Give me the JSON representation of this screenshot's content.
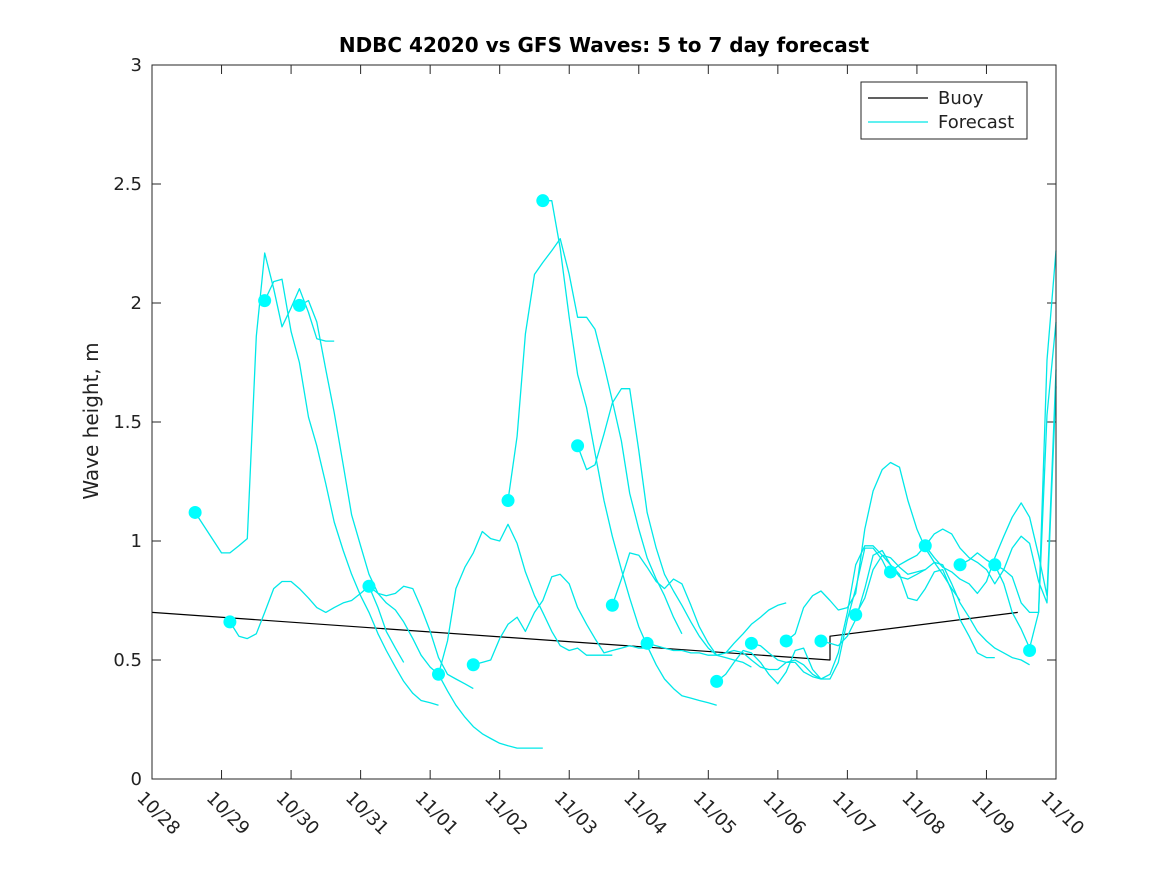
{
  "chart_data": {
    "type": "line",
    "title": "NDBC 42020 vs GFS Waves: 5 to 7 day forecast",
    "xlabel": "",
    "ylabel": "Wave height, m",
    "x_range_days": [
      0,
      13
    ],
    "ylim": [
      0,
      3
    ],
    "yticks": [
      0,
      0.5,
      1,
      1.5,
      2,
      2.5,
      3
    ],
    "ytick_labels": [
      "0",
      "0.5",
      "1",
      "1.5",
      "2",
      "2.5",
      "3"
    ],
    "xtick_labels": [
      "10/28",
      "10/29",
      "10/30",
      "10/31",
      "11/01",
      "11/02",
      "11/03",
      "11/04",
      "11/05",
      "11/06",
      "11/07",
      "11/08",
      "11/09",
      "11/10"
    ],
    "legend": {
      "location": "top-right",
      "entries": [
        {
          "label": "Buoy",
          "color": "#000000"
        },
        {
          "label": "Forecast",
          "color": "#00ffff"
        }
      ]
    },
    "colors": {
      "buoy": "#000000",
      "forecast": "#00e8e8",
      "marker": "#00ffff"
    },
    "series": [
      {
        "name": "Buoy",
        "x": [
          0,
          9.75,
          9.75,
          12.45
        ],
        "y": [
          0.7,
          0.5,
          0.6,
          0.7
        ]
      },
      {
        "name": "Forecast",
        "x": [
          0.62,
          1.0,
          1.12,
          1.25,
          1.37,
          1.5,
          1.62,
          1.75,
          1.87,
          2.0,
          2.12,
          2.25,
          2.37,
          2.5,
          2.62
        ],
        "y": [
          1.12,
          0.95,
          0.95,
          0.98,
          1.01,
          1.86,
          2.21,
          2.06,
          1.9,
          1.98,
          2.06,
          1.96,
          1.85,
          1.84,
          1.84
        ]
      },
      {
        "name": "Forecast",
        "x": [
          1.12,
          1.25,
          1.37,
          1.5,
          1.62,
          1.75,
          1.87,
          2.0,
          2.12,
          2.25,
          2.37,
          2.5,
          2.62,
          2.75,
          2.87,
          3.0,
          3.12,
          3.25,
          3.37,
          3.5,
          3.62
        ],
        "y": [
          0.66,
          0.6,
          0.59,
          0.61,
          0.7,
          0.8,
          0.83,
          0.83,
          0.8,
          0.76,
          0.72,
          0.7,
          0.72,
          0.74,
          0.75,
          0.78,
          0.81,
          0.72,
          0.62,
          0.55,
          0.49
        ]
      },
      {
        "name": "Forecast",
        "x": [
          1.62,
          1.75,
          1.87,
          2.0,
          2.12,
          2.25,
          2.37,
          2.5,
          2.62,
          2.75,
          2.87,
          3.0,
          3.12,
          3.25,
          3.37,
          3.5,
          3.62,
          3.75,
          3.87,
          4.0,
          4.12
        ],
        "y": [
          2.01,
          2.09,
          2.1,
          1.88,
          1.75,
          1.52,
          1.4,
          1.24,
          1.08,
          0.96,
          0.86,
          0.77,
          0.7,
          0.61,
          0.54,
          0.47,
          0.41,
          0.36,
          0.33,
          0.32,
          0.31
        ]
      },
      {
        "name": "Forecast",
        "x": [
          2.12,
          2.25,
          2.37,
          2.5,
          2.62,
          2.75,
          2.87,
          3.0,
          3.12,
          3.25,
          3.37,
          3.5,
          3.62,
          3.75,
          3.87,
          4.0,
          4.12,
          4.25,
          4.37,
          4.5,
          4.62
        ],
        "y": [
          1.99,
          2.01,
          1.92,
          1.72,
          1.54,
          1.32,
          1.11,
          0.98,
          0.86,
          0.78,
          0.77,
          0.78,
          0.81,
          0.8,
          0.72,
          0.62,
          0.51,
          0.44,
          0.42,
          0.4,
          0.38
        ]
      },
      {
        "name": "Forecast",
        "x": [
          3.12,
          3.25,
          3.37,
          3.5,
          3.62,
          3.75,
          3.87,
          4.0,
          4.12,
          4.25,
          4.37,
          4.5,
          4.62,
          4.75,
          4.87,
          5.0,
          5.12,
          5.25,
          5.37,
          5.5,
          5.62
        ],
        "y": [
          0.81,
          0.78,
          0.74,
          0.71,
          0.66,
          0.59,
          0.52,
          0.47,
          0.44,
          0.37,
          0.31,
          0.26,
          0.22,
          0.19,
          0.17,
          0.15,
          0.14,
          0.13,
          0.13,
          0.13,
          0.13
        ]
      },
      {
        "name": "Forecast",
        "x": [
          4.12,
          4.25,
          4.37,
          4.5,
          4.62,
          4.75,
          4.87,
          5.0,
          5.12,
          5.25,
          5.37,
          5.5,
          5.62,
          5.75,
          5.87,
          6.0,
          6.12,
          6.25,
          6.37,
          6.5,
          6.62
        ],
        "y": [
          0.44,
          0.58,
          0.8,
          0.89,
          0.95,
          1.04,
          1.01,
          1.0,
          1.07,
          0.99,
          0.87,
          0.77,
          0.7,
          0.62,
          0.56,
          0.54,
          0.55,
          0.52,
          0.52,
          0.52,
          0.52
        ]
      },
      {
        "name": "Forecast",
        "x": [
          4.62,
          4.75,
          4.87,
          5.0,
          5.12,
          5.25,
          5.37,
          5.5,
          5.62,
          5.75,
          5.87,
          6.0,
          6.12,
          6.25,
          6.37,
          6.5,
          6.62,
          6.75,
          6.87,
          7.0,
          7.12
        ],
        "y": [
          0.48,
          0.49,
          0.5,
          0.59,
          0.65,
          0.68,
          0.62,
          0.7,
          0.75,
          0.85,
          0.86,
          0.82,
          0.72,
          0.65,
          0.59,
          0.53,
          0.54,
          0.55,
          0.56,
          0.55,
          0.55
        ]
      },
      {
        "name": "Forecast",
        "x": [
          5.12,
          5.25,
          5.37,
          5.5,
          5.62,
          5.75,
          5.87,
          6.0,
          6.12,
          6.25,
          6.37,
          6.5,
          6.62,
          6.75,
          6.87,
          7.0,
          7.12,
          7.25,
          7.37,
          7.5,
          7.62
        ],
        "y": [
          1.17,
          1.44,
          1.87,
          2.12,
          2.17,
          2.22,
          2.27,
          2.12,
          1.94,
          1.94,
          1.89,
          1.74,
          1.59,
          1.42,
          1.2,
          1.05,
          0.93,
          0.84,
          0.77,
          0.68,
          0.61
        ]
      },
      {
        "name": "Forecast",
        "x": [
          5.62,
          5.75,
          5.87,
          6.0,
          6.12,
          6.25,
          6.37,
          6.5,
          6.62,
          6.75,
          6.87,
          7.0,
          7.12,
          7.25,
          7.37,
          7.5,
          7.62,
          7.75,
          7.87,
          8.0,
          8.12
        ],
        "y": [
          2.43,
          2.43,
          2.23,
          1.94,
          1.7,
          1.56,
          1.37,
          1.17,
          1.02,
          0.88,
          0.76,
          0.64,
          0.56,
          0.48,
          0.42,
          0.38,
          0.35,
          0.34,
          0.33,
          0.32,
          0.31
        ]
      },
      {
        "name": "Forecast",
        "x": [
          6.12,
          6.25,
          6.37,
          6.5,
          6.62,
          6.75,
          6.87,
          7.0,
          7.12,
          7.25,
          7.37,
          7.5,
          7.62,
          7.75,
          7.87,
          8.0,
          8.12,
          8.25,
          8.37,
          8.5,
          8.62
        ],
        "y": [
          1.4,
          1.3,
          1.32,
          1.45,
          1.58,
          1.64,
          1.64,
          1.38,
          1.12,
          0.97,
          0.86,
          0.79,
          0.73,
          0.66,
          0.6,
          0.55,
          0.52,
          0.51,
          0.5,
          0.49,
          0.47
        ]
      },
      {
        "name": "Forecast",
        "x": [
          6.62,
          6.75,
          6.87,
          7.0,
          7.12,
          7.25,
          7.37,
          7.5,
          7.62,
          7.75,
          7.87,
          8.0,
          8.12,
          8.25,
          8.37,
          8.5,
          8.62,
          8.75,
          8.87,
          9.0,
          9.12
        ],
        "y": [
          0.73,
          0.84,
          0.95,
          0.94,
          0.89,
          0.83,
          0.8,
          0.84,
          0.82,
          0.73,
          0.64,
          0.57,
          0.52,
          0.53,
          0.57,
          0.61,
          0.65,
          0.68,
          0.71,
          0.73,
          0.74
        ]
      },
      {
        "name": "Forecast",
        "x": [
          7.12,
          7.25,
          7.37,
          7.5,
          7.62,
          7.75,
          7.87,
          8.0,
          8.12,
          8.25,
          8.37,
          8.5,
          8.62,
          8.75,
          8.87,
          9.0,
          9.12,
          9.25,
          9.37,
          9.5,
          9.62
        ],
        "y": [
          0.57,
          0.56,
          0.55,
          0.54,
          0.54,
          0.53,
          0.53,
          0.52,
          0.52,
          0.53,
          0.54,
          0.53,
          0.5,
          0.47,
          0.46,
          0.46,
          0.49,
          0.5,
          0.48,
          0.44,
          0.42
        ]
      },
      {
        "name": "Forecast",
        "x": [
          8.12,
          8.25,
          8.37,
          8.5,
          8.62,
          8.75,
          8.87,
          9.0,
          9.12,
          9.25,
          9.37,
          9.5,
          9.62,
          9.75,
          9.87,
          10.0,
          10.12,
          10.25,
          10.37,
          10.5,
          10.62
        ],
        "y": [
          0.41,
          0.44,
          0.49,
          0.54,
          0.53,
          0.49,
          0.44,
          0.4,
          0.45,
          0.54,
          0.55,
          0.46,
          0.42,
          0.42,
          0.49,
          0.67,
          0.8,
          0.97,
          0.97,
          0.92,
          0.85
        ]
      },
      {
        "name": "Forecast",
        "x": [
          8.62,
          8.75,
          8.87,
          9.0,
          9.12,
          9.25,
          9.37,
          9.5,
          9.62,
          9.75,
          9.87,
          10.0,
          10.12,
          10.25,
          10.37,
          10.5,
          10.62,
          10.75,
          10.87,
          11.0,
          11.12
        ],
        "y": [
          0.57,
          0.56,
          0.53,
          0.5,
          0.49,
          0.49,
          0.45,
          0.43,
          0.42,
          0.44,
          0.53,
          0.7,
          0.9,
          0.98,
          0.98,
          0.94,
          0.9,
          0.85,
          0.84,
          0.86,
          0.88
        ]
      },
      {
        "name": "Forecast",
        "x": [
          9.12,
          9.25,
          9.37,
          9.5,
          9.62,
          9.75,
          9.87,
          10.0,
          10.12,
          10.25,
          10.37,
          10.5,
          10.62,
          10.75,
          10.87,
          11.0,
          11.12,
          11.25,
          11.37,
          11.5,
          11.62
        ],
        "y": [
          0.58,
          0.61,
          0.72,
          0.77,
          0.79,
          0.75,
          0.71,
          0.72,
          0.78,
          1.05,
          1.21,
          1.3,
          1.33,
          1.31,
          1.17,
          1.05,
          0.97,
          0.91,
          0.86,
          0.8,
          0.75
        ]
      },
      {
        "name": "Forecast",
        "x": [
          9.62,
          9.75,
          9.87,
          10.0,
          10.12,
          10.25,
          10.37,
          10.5,
          10.62,
          10.75,
          10.87,
          11.0,
          11.12,
          11.25,
          11.37,
          11.5,
          11.62,
          11.75,
          11.87,
          12.0,
          12.12
        ],
        "y": [
          0.58,
          0.57,
          0.56,
          0.6,
          0.67,
          0.8,
          0.94,
          0.96,
          0.9,
          0.86,
          0.76,
          0.75,
          0.8,
          0.87,
          0.88,
          0.79,
          0.67,
          0.6,
          0.53,
          0.51,
          0.51
        ]
      },
      {
        "name": "Forecast",
        "x": [
          10.12,
          10.25,
          10.37,
          10.5,
          10.62,
          10.75,
          10.87,
          11.0,
          11.12,
          11.25,
          11.37,
          11.5,
          11.62,
          11.75,
          11.87,
          12.0,
          12.12,
          12.25,
          12.37,
          12.5,
          12.62
        ],
        "y": [
          0.69,
          0.76,
          0.88,
          0.94,
          0.93,
          0.89,
          0.86,
          0.87,
          0.88,
          0.91,
          0.9,
          0.82,
          0.74,
          0.68,
          0.62,
          0.58,
          0.55,
          0.53,
          0.51,
          0.5,
          0.48
        ]
      },
      {
        "name": "Forecast",
        "x": [
          10.62,
          10.75,
          10.87,
          11.0,
          11.12,
          11.25,
          11.37,
          11.5,
          11.62,
          11.75,
          11.87,
          12.0,
          12.12,
          12.25,
          12.37,
          12.5,
          12.62,
          12.75,
          12.87,
          13.0
        ],
        "y": [
          0.87,
          0.9,
          0.92,
          0.94,
          0.98,
          1.03,
          1.05,
          1.03,
          0.97,
          0.93,
          0.91,
          0.88,
          0.82,
          0.88,
          0.97,
          1.02,
          0.99,
          0.83,
          0.74,
          1.65
        ]
      },
      {
        "name": "Forecast",
        "x": [
          11.12,
          11.25,
          11.37,
          11.5,
          11.62,
          11.75,
          11.87,
          12.0,
          12.12,
          12.25,
          12.37,
          12.5,
          12.62,
          12.75,
          12.87,
          13.0
        ],
        "y": [
          0.98,
          0.93,
          0.89,
          0.87,
          0.84,
          0.82,
          0.78,
          0.83,
          0.93,
          1.02,
          1.1,
          1.16,
          1.1,
          0.94,
          0.77,
          1.72
        ]
      },
      {
        "name": "Forecast",
        "x": [
          11.62,
          11.75,
          11.87,
          12.0,
          12.12,
          12.25,
          12.37,
          12.5,
          12.62,
          12.75,
          12.87,
          13.0
        ],
        "y": [
          0.9,
          0.92,
          0.95,
          0.92,
          0.9,
          0.88,
          0.85,
          0.74,
          0.7,
          0.7,
          1.76,
          2.22
        ]
      },
      {
        "name": "Forecast",
        "x": [
          12.12,
          12.25,
          12.37,
          12.5,
          12.62,
          12.75,
          12.87,
          13.0
        ],
        "y": [
          0.9,
          0.82,
          0.7,
          0.63,
          0.55,
          0.7,
          1.53,
          1.92
        ]
      }
    ],
    "markers": {
      "x": [
        0.62,
        1.12,
        1.62,
        2.12,
        3.12,
        4.12,
        4.62,
        5.12,
        5.62,
        6.12,
        6.62,
        7.12,
        8.12,
        8.62,
        9.12,
        9.62,
        10.12,
        10.62,
        11.12,
        11.62,
        12.12,
        12.62
      ],
      "y": [
        1.12,
        0.66,
        2.01,
        1.99,
        0.81,
        0.44,
        0.48,
        1.17,
        2.43,
        1.4,
        0.73,
        0.57,
        0.41,
        0.57,
        0.58,
        0.58,
        0.69,
        0.87,
        0.98,
        0.9,
        0.9,
        0.54
      ]
    }
  }
}
